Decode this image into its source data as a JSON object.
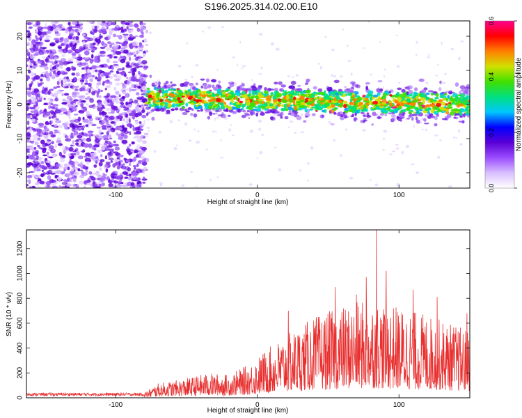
{
  "title": "S196.2025.314.02.00.E10",
  "chart_data": [
    {
      "type": "heatmap",
      "xlabel": "Height of straight line (km)",
      "ylabel": "Frequency (Hz)",
      "xlim": [
        -163,
        150
      ],
      "ylim": [
        -24.5,
        24.5
      ],
      "x_ticks": [
        -100,
        0,
        100
      ],
      "y_ticks": [
        -20,
        -10,
        0,
        10,
        20
      ],
      "colorbar": {
        "label": "Normalized spectral amplitude",
        "range": [
          0.0,
          0.6
        ],
        "ticks": [
          0.0,
          0.2,
          0.4,
          0.6
        ],
        "colors": [
          "#ffffff",
          "#d9bfff",
          "#9a4dff",
          "#5a00d6",
          "#0000ff",
          "#00c8ff",
          "#00e080",
          "#40e000",
          "#d0e000",
          "#ff8000",
          "#ff0000",
          "#ff0090"
        ]
      },
      "regions": [
        {
          "x_range": [
            -163,
            -78
          ],
          "description": "dense purple speckle noise across all frequencies"
        },
        {
          "x_range": [
            -78,
            150
          ],
          "center_freq": [
            2,
            0
          ],
          "band_halfwidth": 4.5
        }
      ]
    },
    {
      "type": "line",
      "xlabel": "Height of straight line (km)",
      "ylabel": "SNR (10 * v/v)",
      "xlim": [
        -163,
        150
      ],
      "ylim": [
        0,
        1350
      ],
      "x_ticks": [
        -100,
        0,
        100
      ],
      "y_ticks": [
        0,
        200,
        400,
        600,
        800,
        1000,
        1200
      ],
      "color": "#e83030",
      "envelope": [
        {
          "x": -163,
          "y": 40
        },
        {
          "x": -80,
          "y": 40
        },
        {
          "x": -70,
          "y": 110
        },
        {
          "x": -50,
          "y": 150
        },
        {
          "x": -35,
          "y": 190
        },
        {
          "x": -20,
          "y": 180
        },
        {
          "x": -5,
          "y": 260
        },
        {
          "x": 5,
          "y": 360
        },
        {
          "x": 20,
          "y": 480
        },
        {
          "x": 40,
          "y": 620
        },
        {
          "x": 60,
          "y": 700
        },
        {
          "x": 80,
          "y": 760
        },
        {
          "x": 100,
          "y": 700
        },
        {
          "x": 120,
          "y": 640
        },
        {
          "x": 140,
          "y": 560
        },
        {
          "x": 150,
          "y": 520
        }
      ],
      "peaks": [
        {
          "x": 84,
          "y": 1350
        },
        {
          "x": 91,
          "y": 1020
        },
        {
          "x": 77,
          "y": 970
        },
        {
          "x": 110,
          "y": 870
        },
        {
          "x": 55,
          "y": 890
        },
        {
          "x": 127,
          "y": 810
        },
        {
          "x": 22,
          "y": 700
        },
        {
          "x": 70,
          "y": 830
        },
        {
          "x": 148,
          "y": 680
        }
      ]
    }
  ]
}
